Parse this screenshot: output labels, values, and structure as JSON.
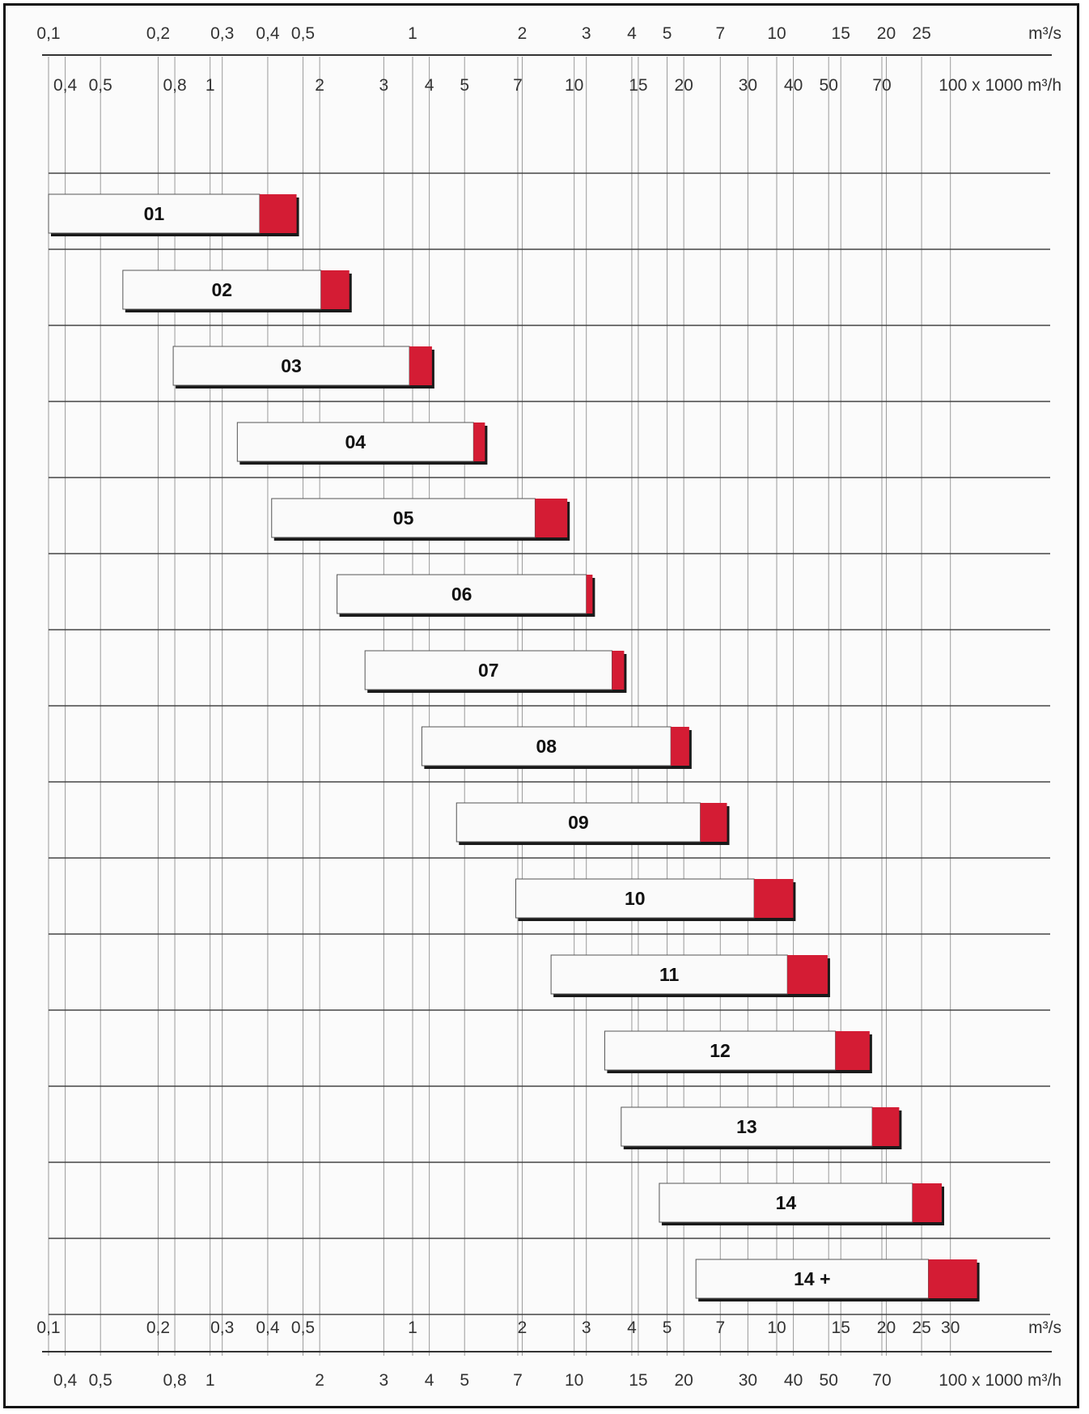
{
  "chart_data": {
    "type": "bar",
    "orientation": "horizontal-range",
    "x_scale": "log",
    "xlim_m3s": [
      0.1,
      33
    ],
    "grid": true,
    "axes": {
      "m3s": {
        "unit": "m³/s",
        "ticks": [
          0.1,
          0.2,
          0.3,
          0.4,
          0.5,
          1,
          2,
          3,
          4,
          5,
          7,
          10,
          15,
          20,
          25
        ],
        "tick_labels": [
          "0,1",
          "0,2",
          "0,3",
          "0,4",
          "0,5",
          "1",
          "2",
          "3",
          "4",
          "5",
          "7",
          "10",
          "15",
          "20",
          "25"
        ]
      },
      "m3s_bottom": {
        "unit": "m³/s",
        "ticks": [
          0.1,
          0.2,
          0.3,
          0.4,
          0.5,
          1,
          2,
          3,
          4,
          5,
          7,
          10,
          15,
          20,
          25,
          30
        ],
        "tick_labels": [
          "0,1",
          "0,2",
          "0,3",
          "0,4",
          "0,5",
          "1",
          "2",
          "3",
          "4",
          "5",
          "7",
          "10",
          "15",
          "20",
          "25",
          "30"
        ]
      },
      "m3h": {
        "unit": "100 x 1000 m³/h",
        "ticks": [
          0.4,
          0.5,
          0.8,
          1,
          2,
          3,
          4,
          5,
          7,
          10,
          15,
          20,
          30,
          40,
          50,
          70
        ],
        "tick_labels": [
          "0,4",
          "0,5",
          "0,8",
          "1",
          "2",
          "3",
          "4",
          "5",
          "7",
          "10",
          "15",
          "20",
          "30",
          "40",
          "50",
          "70"
        ]
      }
    },
    "series": [
      {
        "label": "01",
        "min": 0.1,
        "max_white": 0.38,
        "max": 0.48
      },
      {
        "label": "02",
        "min": 0.16,
        "max_white": 0.56,
        "max": 0.67
      },
      {
        "label": "03",
        "min": 0.22,
        "max_white": 0.98,
        "max": 1.13
      },
      {
        "label": "04",
        "min": 0.33,
        "max_white": 1.47,
        "max": 1.58
      },
      {
        "label": "05",
        "min": 0.41,
        "max_white": 2.17,
        "max": 2.66
      },
      {
        "label": "06",
        "min": 0.62,
        "max_white": 3.0,
        "max": 3.12
      },
      {
        "label": "07",
        "min": 0.74,
        "max_white": 3.53,
        "max": 3.81
      },
      {
        "label": "08",
        "min": 1.06,
        "max_white": 5.12,
        "max": 5.75
      },
      {
        "label": "09",
        "min": 1.32,
        "max_white": 6.17,
        "max": 7.3
      },
      {
        "label": "10",
        "min": 1.92,
        "max_white": 8.67,
        "max": 11.1
      },
      {
        "label": "11",
        "min": 2.4,
        "max_white": 10.7,
        "max": 13.8
      },
      {
        "label": "12",
        "min": 3.37,
        "max_white": 14.5,
        "max": 18.0
      },
      {
        "label": "13",
        "min": 3.74,
        "max_white": 18.3,
        "max": 21.7
      },
      {
        "label": "14",
        "min": 4.76,
        "max_white": 23.6,
        "max": 28.4
      },
      {
        "label": "14 +",
        "min": 6.0,
        "max_white": 26.1,
        "max": 35.5
      }
    ],
    "colors": {
      "bar_fill": "#fafafa",
      "bar_outline": "#555555",
      "bar_shadow": "#1a1a1a",
      "max_segment": "#d41c34",
      "grid": "#9a9a9a",
      "row_line": "#444444",
      "text": "#333333"
    }
  }
}
